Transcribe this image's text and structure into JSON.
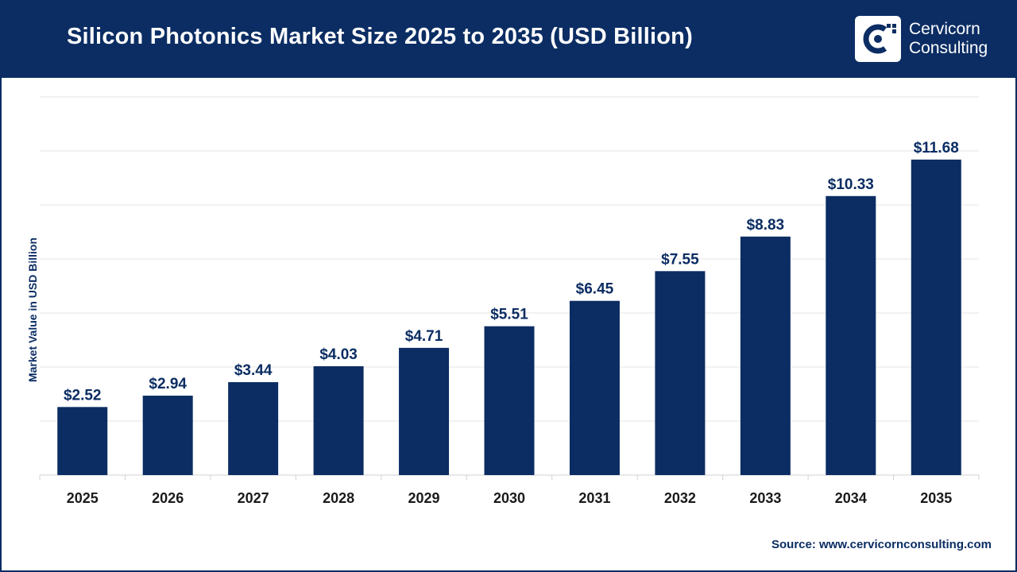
{
  "header": {
    "title": "Silicon Photonics Market Size 2025 to 2035 (USD Billion)",
    "logo_line1": "Cervicorn",
    "logo_line2": "Consulting"
  },
  "colors": {
    "brand": "#0b2d63",
    "bar": "#0b2d63",
    "grid": "#e6e6e6"
  },
  "chart_data": {
    "type": "bar",
    "title": "Silicon Photonics Market Size 2025 to 2035 (USD Billion)",
    "ylabel": "Market Value in USD Billion",
    "xlabel": "",
    "categories": [
      "2025",
      "2026",
      "2027",
      "2028",
      "2029",
      "2030",
      "2031",
      "2032",
      "2033",
      "2034",
      "2035"
    ],
    "values": [
      2.52,
      2.94,
      3.44,
      4.03,
      4.71,
      5.51,
      6.45,
      7.55,
      8.83,
      10.33,
      11.68
    ],
    "value_labels": [
      "$2.52",
      "$2.94",
      "$3.44",
      "$4.03",
      "$4.71",
      "$5.51",
      "$6.45",
      "$7.55",
      "$8.83",
      "$10.33",
      "$11.68"
    ],
    "ylim": [
      0,
      14
    ],
    "grid": true,
    "legend": "none"
  },
  "footer": {
    "source": "Source: www.cervicornconsulting.com"
  }
}
